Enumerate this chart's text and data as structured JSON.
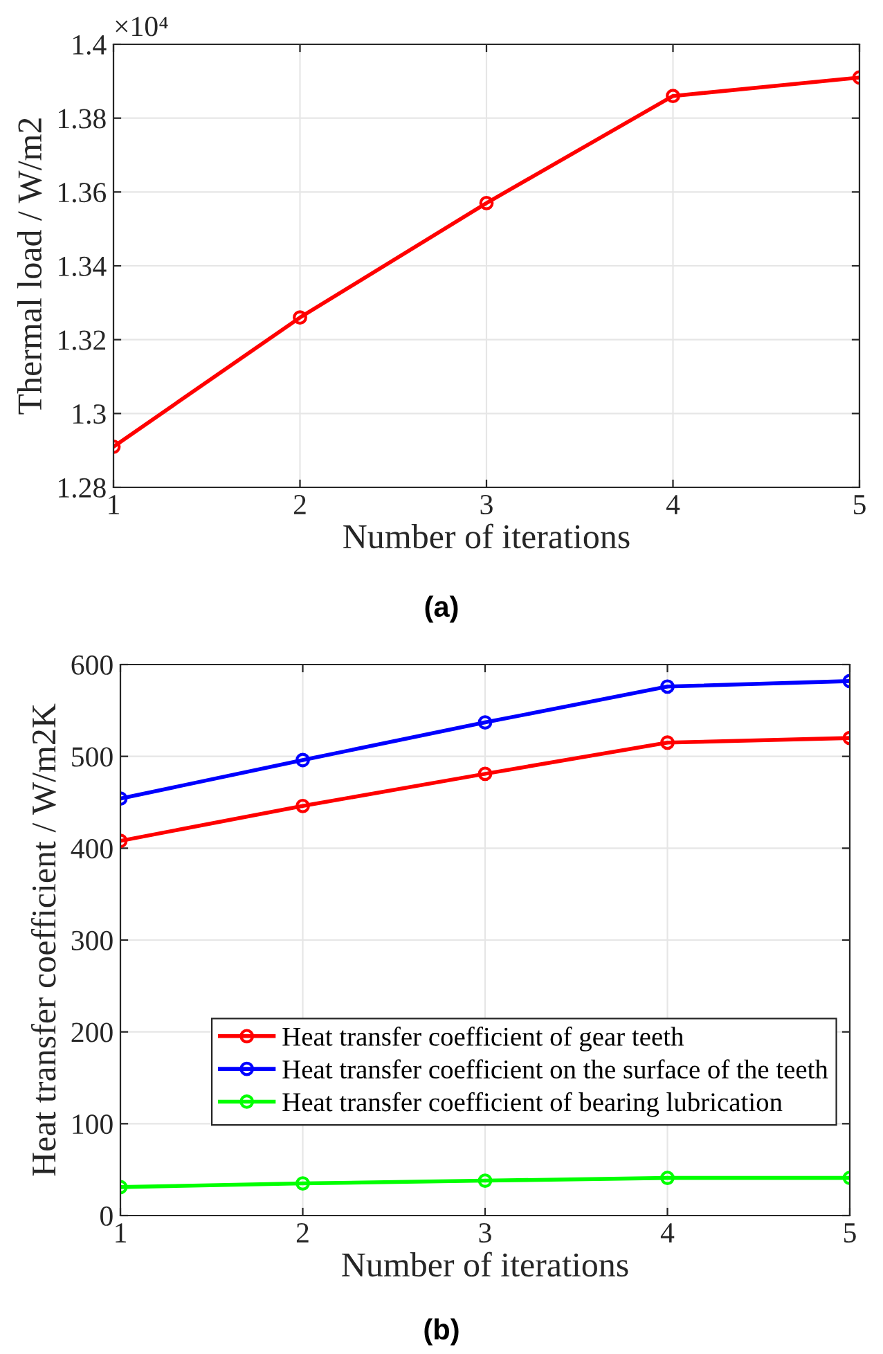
{
  "chart_data": [
    {
      "type": "line",
      "title": "(a)",
      "xlabel": "Number of iterations",
      "ylabel": "Thermal load / W/m2",
      "x": [
        1,
        2,
        3,
        4,
        5
      ],
      "series": [
        {
          "color": "#ff0000",
          "values": [
            1.291,
            1.326,
            1.357,
            1.386,
            1.391
          ]
        }
      ],
      "xlim": [
        1,
        5
      ],
      "xticks": [
        1,
        2,
        3,
        4,
        5
      ],
      "ylim": [
        1.28,
        1.4
      ],
      "yticks": [
        1.28,
        1.3,
        1.32,
        1.34,
        1.36,
        1.38,
        1.4
      ],
      "annotations": [
        "×10⁴"
      ],
      "grid": true,
      "marker": "circle",
      "line_style": "solid"
    },
    {
      "type": "line",
      "title": "(b)",
      "xlabel": "Number of iterations",
      "ylabel": "Heat transfer coefficient / W/m2K",
      "x": [
        1,
        2,
        3,
        4,
        5
      ],
      "series": [
        {
          "name": "Heat transfer coefficient of gear teeth",
          "color": "#ff0000",
          "values": [
            408,
            446,
            481,
            515,
            520
          ]
        },
        {
          "name": "Heat transfer coefficient on the surface of the teeth",
          "color": "#0000ff",
          "values": [
            454,
            496,
            537,
            576,
            582
          ]
        },
        {
          "name": "Heat transfer coefficient of bearing lubrication",
          "color": "#00ff00",
          "values": [
            31,
            35,
            38,
            41,
            41
          ]
        }
      ],
      "xlim": [
        1,
        5
      ],
      "xticks": [
        1,
        2,
        3,
        4,
        5
      ],
      "ylim": [
        0,
        600
      ],
      "yticks": [
        0,
        100,
        200,
        300,
        400,
        500,
        600
      ],
      "grid": true,
      "legend": "bottom right",
      "marker": "circle",
      "line_style": "solid"
    }
  ]
}
